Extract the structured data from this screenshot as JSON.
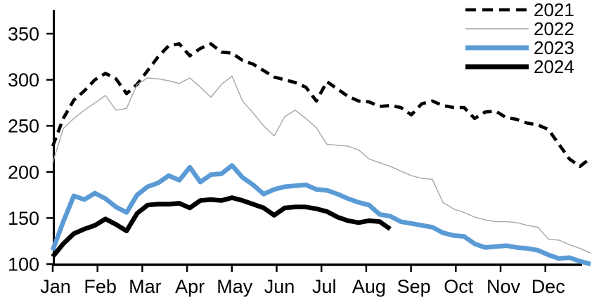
{
  "chart_data": {
    "type": "line",
    "title": "",
    "xlabel": "",
    "ylabel": "",
    "x_axis": {
      "tick_labels": [
        "Jan",
        "Feb",
        "Mar",
        "Apr",
        "May",
        "Jun",
        "Jul",
        "Aug",
        "Sep",
        "Oct",
        "Nov",
        "Dec"
      ],
      "sampling": "weekly (≈52 points per year)"
    },
    "y_axis": {
      "ticks": [
        100,
        150,
        200,
        250,
        300,
        350
      ],
      "ylim": [
        100,
        376
      ]
    },
    "legend": {
      "position": "top-right",
      "entries": [
        "2021",
        "2022",
        "2023",
        "2024"
      ]
    },
    "colors": {
      "black": "#000000",
      "gray": "#a6a6a6",
      "blue": "#5b9bd5"
    },
    "series": [
      {
        "name": "2021",
        "style": "dashed",
        "color": "#000000",
        "stroke_width": 4.6,
        "dash": "13 8",
        "values": [
          228,
          258,
          278,
          288,
          300,
          307,
          301,
          285,
          295,
          310,
          325,
          337,
          339,
          326,
          334,
          339,
          330,
          329,
          321,
          317,
          310,
          303,
          300,
          297,
          292,
          277,
          298,
          290,
          282,
          277,
          276,
          271,
          272,
          270,
          262,
          274,
          277,
          272,
          270,
          270,
          258,
          265,
          266,
          259,
          257,
          253,
          251,
          246,
          230,
          214,
          206,
          215
        ]
      },
      {
        "name": "2022",
        "style": "solid-thin",
        "color": "#a6a6a6",
        "stroke_width": 1.4,
        "dash": "",
        "values": [
          210,
          247,
          258,
          267,
          275,
          283,
          267,
          269,
          295,
          302,
          301,
          299,
          296,
          302,
          292,
          281,
          295,
          304,
          277,
          264,
          250,
          239,
          260,
          267,
          258,
          248,
          230,
          229,
          228,
          224,
          214,
          210,
          206,
          201,
          196,
          193,
          192,
          167,
          160,
          156,
          151,
          148,
          146,
          146,
          145,
          142,
          140,
          127,
          126,
          121,
          117,
          112
        ]
      },
      {
        "name": "2023",
        "style": "solid-thick",
        "color": "#5b9bd5",
        "stroke_width": 6.6,
        "dash": "",
        "values": [
          115,
          146,
          174,
          170,
          177,
          171,
          162,
          156,
          175,
          184,
          188,
          196,
          191,
          205,
          189,
          197,
          198,
          207,
          194,
          186,
          176,
          181,
          184,
          185,
          186,
          181,
          180,
          176,
          171,
          167,
          164,
          154,
          152,
          146,
          144,
          142,
          140,
          134,
          131,
          130,
          122,
          118,
          119,
          120,
          118,
          117,
          115,
          110,
          106,
          107,
          103,
          100
        ]
      },
      {
        "name": "2024",
        "style": "solid-thick",
        "color": "#000000",
        "stroke_width": 6.6,
        "dash": "",
        "values": [
          108,
          122,
          133,
          138,
          142,
          149,
          143,
          136,
          155,
          164,
          165,
          165,
          166,
          161,
          169,
          170,
          169,
          172,
          169,
          165,
          161,
          153,
          161,
          162,
          162,
          160,
          157,
          151,
          147,
          145,
          147,
          146,
          138
        ]
      }
    ]
  }
}
